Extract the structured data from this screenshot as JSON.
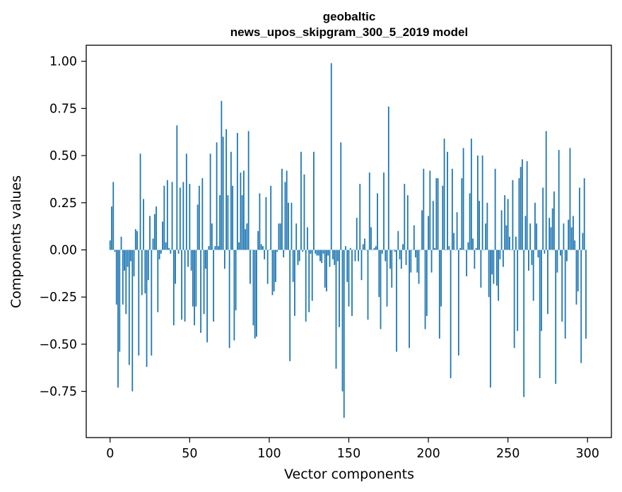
{
  "chart_data": {
    "type": "bar",
    "title": [
      "geobaltic",
      "news_upos_skipgram_300_5_2019 model"
    ],
    "xlabel": "Vector components",
    "ylabel": "Components values",
    "xlim": [
      -15,
      315
    ],
    "ylim": [
      -0.995,
      1.085
    ],
    "xticks": [
      0,
      50,
      100,
      150,
      200,
      250,
      300
    ],
    "yticks": [
      1.0,
      0.75,
      0.5,
      0.25,
      0.0,
      -0.25,
      -0.5,
      -0.75
    ],
    "xtick_labels": [
      "0",
      "50",
      "100",
      "150",
      "200",
      "250",
      "300"
    ],
    "ytick_labels": [
      "1.00",
      "0.75",
      "0.50",
      "0.25",
      "0.00",
      "−0.25",
      "−0.50",
      "−0.75"
    ],
    "grid": false,
    "series": [
      {
        "color": "#1f77b4",
        "x": [
          0,
          1,
          2,
          3,
          4,
          5,
          6,
          7,
          8,
          9,
          10,
          11,
          12,
          13,
          14,
          15,
          16,
          17,
          18,
          19,
          20,
          21,
          22,
          23,
          24,
          25,
          26,
          27,
          28,
          29,
          30,
          31,
          32,
          33,
          34,
          35,
          36,
          37,
          38,
          39,
          40,
          41,
          42,
          43,
          44,
          45,
          46,
          47,
          48,
          49,
          50,
          51,
          52,
          53,
          54,
          55,
          56,
          57,
          58,
          59,
          60,
          61,
          62,
          63,
          64,
          65,
          66,
          67,
          68,
          69,
          70,
          71,
          72,
          73,
          74,
          75,
          76,
          77,
          78,
          79,
          80,
          81,
          82,
          83,
          84,
          85,
          86,
          87,
          88,
          89,
          90,
          91,
          92,
          93,
          94,
          95,
          96,
          97,
          98,
          99,
          100,
          101,
          102,
          103,
          104,
          105,
          106,
          107,
          108,
          109,
          110,
          111,
          112,
          113,
          114,
          115,
          116,
          117,
          118,
          119,
          120,
          121,
          122,
          123,
          124,
          125,
          126,
          127,
          128,
          129,
          130,
          131,
          132,
          133,
          134,
          135,
          136,
          137,
          138,
          139,
          140,
          141,
          142,
          143,
          144,
          145,
          146,
          147,
          148,
          149,
          150,
          151,
          152,
          153,
          154,
          155,
          156,
          157,
          158,
          159,
          160,
          161,
          162,
          163,
          164,
          165,
          166,
          167,
          168,
          169,
          170,
          171,
          172,
          173,
          174,
          175,
          176,
          177,
          178,
          179,
          180,
          181,
          182,
          183,
          184,
          185,
          186,
          187,
          188,
          189,
          190,
          191,
          192,
          193,
          194,
          195,
          196,
          197,
          198,
          199,
          200,
          201,
          202,
          203,
          204,
          205,
          206,
          207,
          208,
          209,
          210,
          211,
          212,
          213,
          214,
          215,
          216,
          217,
          218,
          219,
          220,
          221,
          222,
          223,
          224,
          225,
          226,
          227,
          228,
          229,
          230,
          231,
          232,
          233,
          234,
          235,
          236,
          237,
          238,
          239,
          240,
          241,
          242,
          243,
          244,
          245,
          246,
          247,
          248,
          249,
          250,
          251,
          252,
          253,
          254,
          255,
          256,
          257,
          258,
          259,
          260,
          261,
          262,
          263,
          264,
          265,
          266,
          267,
          268,
          269,
          270,
          271,
          272,
          273,
          274,
          275,
          276,
          277,
          278,
          279,
          280,
          281,
          282,
          283,
          284,
          285,
          286,
          287,
          288,
          289,
          290,
          291,
          292,
          293,
          294,
          295,
          296,
          297,
          298,
          299
        ],
        "values": [
          0.05,
          0.23,
          0.36,
          -0.01,
          -0.29,
          -0.73,
          -0.54,
          0.07,
          -0.29,
          -0.11,
          -0.34,
          -0.09,
          -0.61,
          -0.06,
          -0.75,
          -0.14,
          0.11,
          0.1,
          -0.56,
          0.51,
          -0.24,
          0.27,
          -0.23,
          -0.62,
          -0.16,
          0.18,
          -0.56,
          0.06,
          0.19,
          0.23,
          -0.33,
          -0.05,
          -0.02,
          0.15,
          0.34,
          0.04,
          0.37,
          0.01,
          -0.02,
          0.36,
          -0.4,
          -0.18,
          0.66,
          -0.02,
          0.33,
          -0.37,
          0.36,
          -0.38,
          0.51,
          -0.09,
          0.35,
          -0.11,
          -0.3,
          -0.4,
          -0.3,
          0.24,
          0.34,
          -0.44,
          0.38,
          -0.34,
          -0.1,
          -0.49,
          0.02,
          0.51,
          0.14,
          -0.38,
          0.02,
          0.57,
          0.02,
          0.29,
          0.79,
          0.6,
          -0.1,
          0.64,
          0.29,
          -0.52,
          0.52,
          0.34,
          -0.48,
          -0.32,
          0.62,
          0.04,
          0.41,
          0.29,
          0.42,
          0.11,
          0.14,
          0.63,
          -0.18,
          0.0,
          -0.4,
          -0.47,
          -0.46,
          0.1,
          0.3,
          0.03,
          0.02,
          -0.05,
          0.28,
          -0.18,
          0.0,
          0.34,
          -0.24,
          -0.22,
          -0.17,
          -0.01,
          0.14,
          0.14,
          0.43,
          -0.04,
          0.36,
          0.42,
          0.25,
          -0.59,
          0.25,
          -0.17,
          -0.35,
          0.14,
          -0.08,
          -0.06,
          0.52,
          -0.01,
          0.4,
          -0.38,
          0.12,
          -0.33,
          -0.02,
          -0.27,
          0.52,
          -0.02,
          -0.03,
          -0.03,
          -0.06,
          -0.07,
          -0.02,
          -0.2,
          -0.22,
          -0.03,
          -0.09,
          0.99,
          -0.05,
          -0.08,
          -0.63,
          -0.06,
          -0.41,
          0.57,
          -0.75,
          -0.89,
          0.02,
          -0.17,
          -0.3,
          0.01,
          -0.35,
          0.0,
          -0.06,
          0.17,
          -0.06,
          0.35,
          -0.16,
          0.03,
          0.06,
          0.0,
          -0.37,
          0.41,
          0.12,
          0.0,
          0.01,
          0.02,
          0.3,
          -0.25,
          -0.42,
          -0.02,
          0.41,
          -0.06,
          -0.3,
          0.76,
          -0.1,
          -0.2,
          0.0,
          -0.01,
          -0.54,
          0.1,
          -0.05,
          -0.1,
          0.03,
          0.35,
          -0.08,
          0.29,
          -0.52,
          -0.12,
          0.0,
          0.13,
          -0.04,
          -0.12,
          -0.18,
          0.0,
          0.21,
          0.43,
          -0.42,
          -0.35,
          0.18,
          0.42,
          -0.12,
          0.26,
          0.01,
          0.38,
          0.38,
          -0.47,
          -0.3,
          0.34,
          0.59,
          0.0,
          0.52,
          0.02,
          -0.68,
          0.43,
          0.09,
          0.0,
          0.2,
          -0.56,
          0.01,
          0.38,
          0.54,
          0.0,
          -0.14,
          0.04,
          0.3,
          0.59,
          0.06,
          -0.1,
          0.01,
          0.5,
          0.26,
          -0.2,
          0.5,
          0.0,
          0.14,
          0.25,
          -0.25,
          -0.73,
          -0.13,
          -0.18,
          0.43,
          -0.19,
          -0.27,
          -0.05,
          0.21,
          -0.09,
          0.29,
          0.13,
          0.27,
          0.07,
          0.0,
          0.37,
          -0.52,
          0.07,
          -0.43,
          0.38,
          0.44,
          0.48,
          -0.78,
          0.18,
          0.47,
          -0.11,
          0.14,
          -0.08,
          -0.27,
          0.25,
          0.14,
          -0.04,
          -0.68,
          -0.43,
          0.33,
          -0.02,
          0.63,
          -0.34,
          0.17,
          0.12,
          0.22,
          0.31,
          -0.71,
          -0.12,
          0.53,
          -0.03,
          -0.38,
          0.14,
          -0.47,
          -0.06,
          0.16,
          0.54,
          0.12,
          0.18,
          0.05,
          -0.29,
          -0.22,
          0.33,
          -0.6,
          0.09,
          0.38,
          -0.47
        ]
      }
    ]
  }
}
